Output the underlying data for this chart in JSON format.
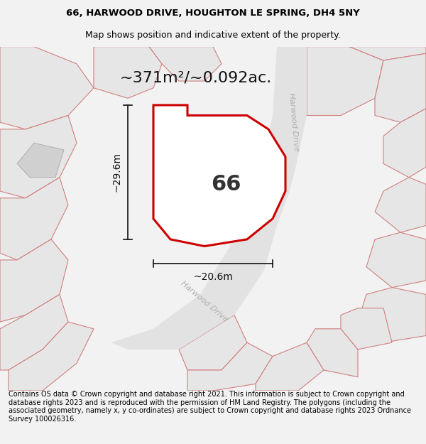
{
  "title_line1": "66, HARWOOD DRIVE, HOUGHTON LE SPRING, DH4 5NY",
  "title_line2": "Map shows position and indicative extent of the property.",
  "footer_text": "Contains OS data © Crown copyright and database right 2021. This information is subject to Crown copyright and database rights 2023 and is reproduced with the permission of HM Land Registry. The polygons (including the associated geometry, namely x, y co-ordinates) are subject to Crown copyright and database rights 2023 Ordnance Survey 100026316.",
  "area_label": "~371m²/~0.092ac.",
  "property_number": "66",
  "dim_height": "~29.6m",
  "dim_width": "~20.6m",
  "road_label_diagonal": "Harwood Drive",
  "road_label_vertical": "Harwood Drive",
  "bg_color": "#f2f2f2",
  "map_bg": "#efefef",
  "property_fill": "#ffffff",
  "property_outline": "#cc0000",
  "building_fill": "#d4d4d4",
  "parcel_fill": "#e8e8e8",
  "parcel_edge": "#d08080",
  "road_fill": "#e0e0e0",
  "dim_color": "#111111",
  "title_fontsize": 9.5,
  "footer_fontsize": 7.0,
  "area_fontsize": 16,
  "number_fontsize": 22,
  "dim_fontsize": 10,
  "road_label_fontsize": 8,
  "road_label_color": "#b0b0b0"
}
